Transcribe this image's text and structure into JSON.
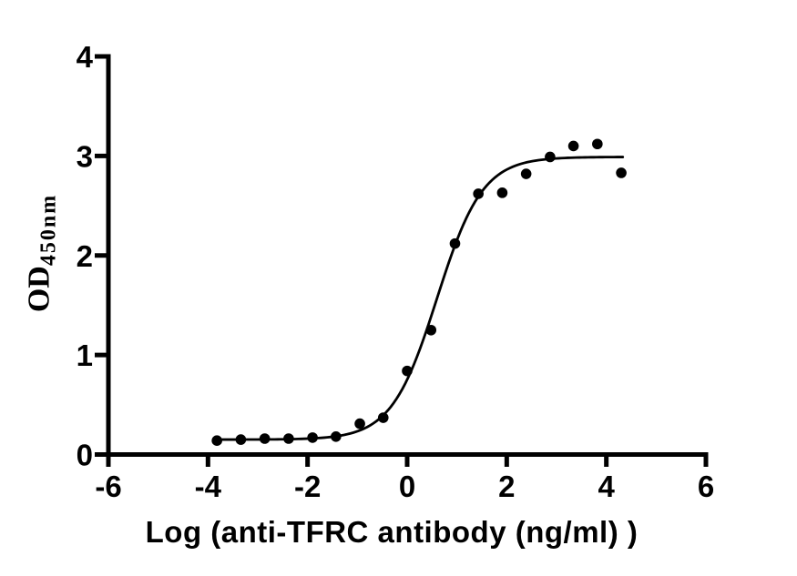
{
  "figure": {
    "background_color": "#ffffff",
    "ink_color": "#000000"
  },
  "chart_data": {
    "type": "scatter",
    "title": "",
    "xlabel": "Log (anti-TFRC antibody (ng/ml) )",
    "ylabel_main": "OD",
    "ylabel_subscript": "450nm",
    "xlim": [
      -6,
      6
    ],
    "ylim": [
      0,
      4
    ],
    "x_ticks": [
      -6,
      -4,
      -2,
      0,
      2,
      4,
      6
    ],
    "y_ticks": [
      0,
      1,
      2,
      3,
      4
    ],
    "grid": false,
    "legend_position": "none",
    "marker_color": "#000000",
    "curve_color": "#000000",
    "points": [
      {
        "x": -3.82,
        "y": 0.14
      },
      {
        "x": -3.34,
        "y": 0.15
      },
      {
        "x": -2.86,
        "y": 0.16
      },
      {
        "x": -2.38,
        "y": 0.16
      },
      {
        "x": -1.9,
        "y": 0.17
      },
      {
        "x": -1.43,
        "y": 0.18
      },
      {
        "x": -0.95,
        "y": 0.31
      },
      {
        "x": -0.48,
        "y": 0.37
      },
      {
        "x": 0.0,
        "y": 0.84
      },
      {
        "x": 0.48,
        "y": 1.25
      },
      {
        "x": 0.96,
        "y": 2.12
      },
      {
        "x": 1.43,
        "y": 2.62
      },
      {
        "x": 1.91,
        "y": 2.63
      },
      {
        "x": 2.39,
        "y": 2.82
      },
      {
        "x": 2.87,
        "y": 2.99
      },
      {
        "x": 3.34,
        "y": 3.1
      },
      {
        "x": 3.82,
        "y": 3.12
      },
      {
        "x": 4.3,
        "y": 2.83
      }
    ],
    "fit_curve": {
      "model": "4PL",
      "bottom": 0.15,
      "top": 2.99,
      "log_ec50": 0.6,
      "hill": 0.95,
      "x_start": -3.82,
      "x_end": 4.33
    }
  }
}
